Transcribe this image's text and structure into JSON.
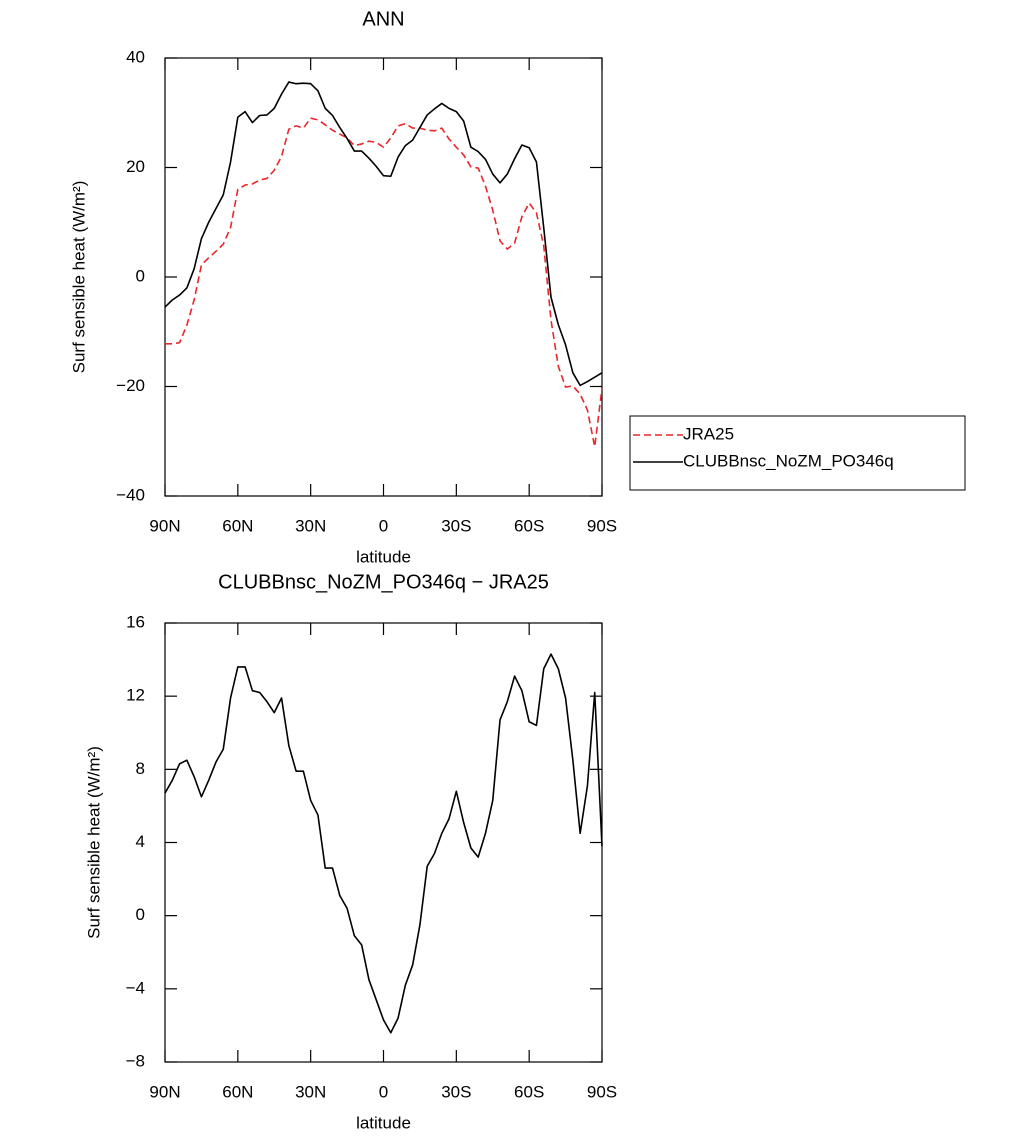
{
  "chart_data": [
    {
      "type": "line",
      "title": "ANN",
      "xlabel": "latitude",
      "ylabel": "Surf sensible heat (W/m²)",
      "x": [
        90,
        87,
        84,
        81,
        78,
        75,
        72,
        69,
        66,
        63,
        60,
        57,
        54,
        51,
        48,
        45,
        42,
        39,
        36,
        33,
        30,
        27,
        24,
        21,
        18,
        15,
        12,
        9,
        6,
        3,
        0,
        -3,
        -6,
        -9,
        -12,
        -15,
        -18,
        -21,
        -24,
        -27,
        -30,
        -33,
        -36,
        -39,
        -42,
        -45,
        -48,
        -51,
        -54,
        -57,
        -60,
        -63,
        -66,
        -69,
        -72,
        -75,
        -78,
        -81,
        -84,
        -87,
        -90
      ],
      "series": [
        {
          "name": "JRA25",
          "color": "#e8262b",
          "dash": "dashed",
          "values": [
            -12.2,
            -12.2,
            -12,
            -8.8,
            -4.2,
            2.2,
            3.5,
            4.7,
            6,
            9,
            16,
            16.8,
            17,
            17.7,
            18,
            19.5,
            22,
            27,
            27.6,
            27.2,
            29,
            28.7,
            27.8,
            26.8,
            26.1,
            25.4,
            24,
            24.3,
            24.8,
            24.6,
            23.7,
            25.4,
            27.6,
            28,
            27.2,
            27.2,
            26.8,
            26.7,
            27.2,
            25.2,
            23.7,
            22.3,
            20.1,
            19.9,
            16.6,
            12.2,
            6.6,
            5.1,
            6.2,
            11,
            13.5,
            11.7,
            5.7,
            -7.9,
            -16.3,
            -20.1,
            -19.9,
            -21.4,
            -24.3,
            -31,
            -20.3
          ]
        },
        {
          "name": "CLUBBnsc_NoZM_PO346q",
          "color": "#000000",
          "dash": "solid",
          "values": [
            -5.5,
            -4.2,
            -3.3,
            -2,
            1.5,
            7,
            10,
            12.5,
            15,
            21,
            29.2,
            30.2,
            28.2,
            29.5,
            29.6,
            30.8,
            33.4,
            35.6,
            35.3,
            35.4,
            35.3,
            34,
            30.8,
            29.5,
            27.3,
            25.3,
            23,
            23,
            21.7,
            20.2,
            18.5,
            18.4,
            21.9,
            24,
            25,
            27.3,
            29.6,
            30.7,
            31.7,
            30.8,
            30.2,
            28.5,
            23.7,
            22.9,
            21.5,
            18.8,
            17.2,
            18.8,
            21.6,
            24.1,
            23.6,
            21,
            9,
            -3.7,
            -8.7,
            -12.4,
            -17.5,
            -19.8,
            -19.1,
            -18.3,
            -17.5
          ]
        }
      ],
      "xlim": [
        90,
        -90
      ],
      "xticks": [
        {
          "value": 90,
          "label": "90N"
        },
        {
          "value": 60,
          "label": "60N"
        },
        {
          "value": 30,
          "label": "30N"
        },
        0,
        {
          "value": -30,
          "label": "30S"
        },
        {
          "value": -60,
          "label": "60S"
        },
        {
          "value": -90,
          "label": "90S"
        }
      ],
      "ylim": [
        -40,
        40
      ],
      "yticks": [
        {
          "value": -40,
          "label": "−40"
        },
        {
          "value": -20,
          "label": "−20"
        },
        0,
        20,
        40
      ],
      "grid": false,
      "legend": "right"
    },
    {
      "type": "line",
      "title": "CLUBBnsc_NoZM_PO346q − JRA25",
      "xlabel": "latitude",
      "ylabel": "Surf sensible heat (W/m²)",
      "x": [
        90,
        87,
        84,
        81,
        78,
        75,
        72,
        69,
        66,
        63,
        60,
        57,
        54,
        51,
        48,
        45,
        42,
        39,
        36,
        33,
        30,
        27,
        24,
        21,
        18,
        15,
        12,
        9,
        6,
        3,
        0,
        -3,
        -6,
        -9,
        -12,
        -15,
        -18,
        -21,
        -24,
        -27,
        -30,
        -33,
        -36,
        -39,
        -42,
        -45,
        -48,
        -51,
        -54,
        -57,
        -60,
        -63,
        -66,
        -69,
        -72,
        -75,
        -78,
        -81,
        -84,
        -87,
        -90
      ],
      "series": [
        {
          "color": "#000000",
          "dash": "solid",
          "values": [
            6.7,
            7.4,
            8.3,
            8.5,
            7.6,
            6.5,
            7.4,
            8.4,
            9.1,
            11.9,
            13.6,
            13.6,
            12.3,
            12.2,
            11.7,
            11.1,
            11.9,
            9.3,
            7.9,
            7.9,
            6.3,
            5.5,
            2.6,
            2.6,
            1.1,
            0.4,
            -1.1,
            -1.6,
            -3.5,
            -4.6,
            -5.7,
            -6.4,
            -5.6,
            -3.8,
            -2.7,
            -0.5,
            2.7,
            3.4,
            4.5,
            5.3,
            6.8,
            5.1,
            3.7,
            3.2,
            4.5,
            6.3,
            10.7,
            11.7,
            13.1,
            12.3,
            10.6,
            10.4,
            13.5,
            14.3,
            13.5,
            11.9,
            8.5,
            4.5,
            7.1,
            12.2,
            3.8
          ]
        }
      ],
      "xlim": [
        90,
        -90
      ],
      "xticks": [
        {
          "value": 90,
          "label": "90N"
        },
        {
          "value": 60,
          "label": "60N"
        },
        {
          "value": 30,
          "label": "30N"
        },
        0,
        {
          "value": -30,
          "label": "30S"
        },
        {
          "value": -60,
          "label": "60S"
        },
        {
          "value": -90,
          "label": "90S"
        }
      ],
      "ylim": [
        -8,
        16
      ],
      "yticks": [
        {
          "value": -8,
          "label": "−8"
        },
        {
          "value": -4,
          "label": "−4"
        },
        0,
        4,
        8,
        12,
        16
      ],
      "grid": false
    }
  ]
}
